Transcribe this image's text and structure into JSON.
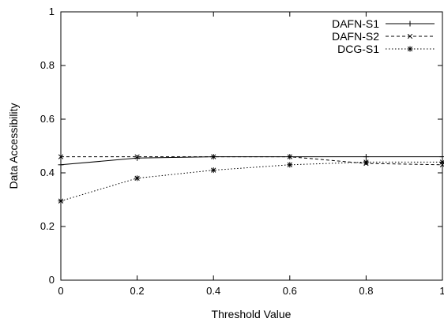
{
  "chart_data": {
    "type": "line",
    "title": "",
    "xlabel": "Threshold Value",
    "ylabel": "Data Accessibility",
    "xlim": [
      0,
      1
    ],
    "ylim": [
      0,
      1
    ],
    "x_ticks": [
      "0",
      "0.2",
      "0.4",
      "0.6",
      "0.8",
      "1"
    ],
    "y_ticks": [
      "0",
      "0.2",
      "0.4",
      "0.6",
      "0.8",
      "1"
    ],
    "x_tick_values": [
      0,
      0.2,
      0.4,
      0.6,
      0.8,
      1
    ],
    "y_tick_values": [
      0,
      0.2,
      0.4,
      0.6,
      0.8,
      1
    ],
    "grid": false,
    "legend_position": "top-right",
    "x": [
      0,
      0.2,
      0.4,
      0.6,
      0.8,
      1
    ],
    "series": [
      {
        "name": "DAFN-S1",
        "values": [
          0.43,
          0.455,
          0.46,
          0.46,
          0.46,
          0.46
        ],
        "dash": "solid",
        "marker": "plus"
      },
      {
        "name": "DAFN-S2",
        "values": [
          0.46,
          0.46,
          0.46,
          0.46,
          0.435,
          0.43
        ],
        "dash": "dashed",
        "marker": "x"
      },
      {
        "name": "DCG-S1",
        "values": [
          0.295,
          0.38,
          0.41,
          0.43,
          0.44,
          0.44
        ],
        "dash": "dotted",
        "marker": "star"
      }
    ]
  }
}
